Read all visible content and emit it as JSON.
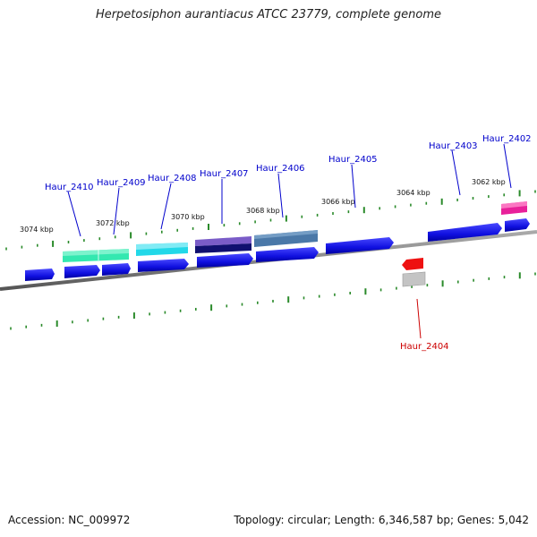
{
  "title": "Herpetosiphon aurantiacus ATCC 23779, complete genome",
  "footer": {
    "accession": "Accession: NC_009972",
    "summary": "Topology: circular; Length: 6,346,587 bp; Genes: 5,042"
  },
  "ticks": [
    "3074 kbp",
    "3072 kbp",
    "3070 kbp",
    "3068 kbp",
    "3066 kbp",
    "3064 kbp",
    "3062 kbp"
  ],
  "gene_labels": [
    {
      "name": "Haur_2410",
      "color": "#0000cc"
    },
    {
      "name": "Haur_2409",
      "color": "#0000cc"
    },
    {
      "name": "Haur_2408",
      "color": "#0000cc"
    },
    {
      "name": "Haur_2407",
      "color": "#0000cc"
    },
    {
      "name": "Haur_2406",
      "color": "#0000cc"
    },
    {
      "name": "Haur_2405",
      "color": "#0000cc"
    },
    {
      "name": "Haur_2403",
      "color": "#0000cc"
    },
    {
      "name": "Haur_2402",
      "color": "#0000cc"
    },
    {
      "name": "Haur_2404",
      "color": "#cc0000"
    }
  ],
  "colors": {
    "cds": "#1a1aee",
    "backbone": "#777777",
    "tick": "#2a8a2a",
    "highlight_2410": "#33e8b0",
    "highlight_2408": "#22d8e8",
    "highlight_2407": "#7a5cc8",
    "highlight_2406": "#4a78a8",
    "highlight_2402": "#e8209a",
    "highlight_2404": "#ee1111"
  }
}
